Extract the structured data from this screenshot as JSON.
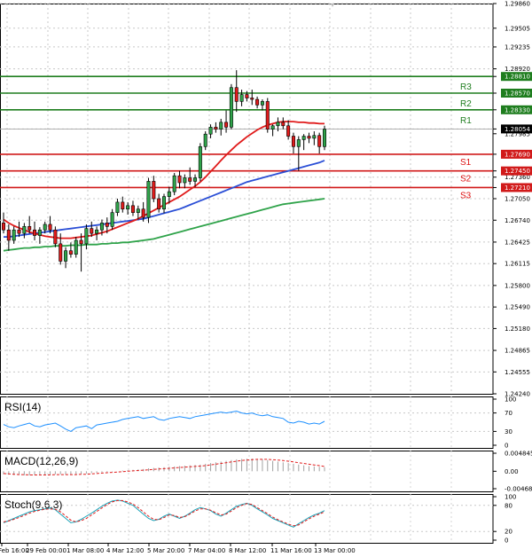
{
  "chart_data": {
    "type": "candlestick",
    "ylim": [
      1.2424,
      1.2986
    ],
    "y_ticks": [
      "1.29860",
      "1.29505",
      "1.29235",
      "1.28920",
      "1.28810",
      "1.28570",
      "1.28330",
      "1.28054",
      "1.27985",
      "1.27690",
      "1.27450",
      "1.27360",
      "1.27210",
      "1.27050",
      "1.26740",
      "1.26425",
      "1.26115",
      "1.25800",
      "1.25490",
      "1.25180",
      "1.24865",
      "1.24555",
      "1.24240"
    ],
    "x_ticks": [
      "Feb 16:00",
      "29 Feb 00:00",
      "1 Mar 08:00",
      "4 Mar 12:00",
      "5 Mar 20:00",
      "7 Mar 04:00",
      "8 Mar 12:00",
      "11 Mar 16:00",
      "13 Mar 00:00"
    ],
    "current_price": "1.28054",
    "levels": [
      {
        "name": "R3",
        "value": "1.28810",
        "color": "#1e7d1e"
      },
      {
        "name": "R2",
        "value": "1.28570",
        "color": "#1e7d1e"
      },
      {
        "name": "R1",
        "value": "1.28330",
        "color": "#1e7d1e"
      },
      {
        "name": "S1",
        "value": "1.27690",
        "color": "#d11a1a"
      },
      {
        "name": "S2",
        "value": "1.27450",
        "color": "#d11a1a"
      },
      {
        "name": "S3",
        "value": "1.27210",
        "color": "#d11a1a"
      }
    ],
    "candles": [
      [
        1.267,
        1.2685,
        1.2655,
        1.266
      ],
      [
        1.266,
        1.2668,
        1.263,
        1.2645
      ],
      [
        1.2645,
        1.2665,
        1.264,
        1.266
      ],
      [
        1.266,
        1.2672,
        1.265,
        1.2655
      ],
      [
        1.2655,
        1.267,
        1.2648,
        1.2665
      ],
      [
        1.2665,
        1.268,
        1.2655,
        1.266
      ],
      [
        1.266,
        1.2672,
        1.2645,
        1.2652
      ],
      [
        1.2652,
        1.2664,
        1.264,
        1.266
      ],
      [
        1.266,
        1.2672,
        1.2655,
        1.2668
      ],
      [
        1.2668,
        1.268,
        1.2655,
        1.266
      ],
      [
        1.266,
        1.2665,
        1.2635,
        1.264
      ],
      [
        1.264,
        1.2655,
        1.261,
        1.2615
      ],
      [
        1.2615,
        1.2635,
        1.2605,
        1.263
      ],
      [
        1.263,
        1.2642,
        1.262,
        1.2625
      ],
      [
        1.2625,
        1.265,
        1.262,
        1.2645
      ],
      [
        1.2645,
        1.2655,
        1.26,
        1.264
      ],
      [
        1.264,
        1.2668,
        1.2632,
        1.2662
      ],
      [
        1.2662,
        1.2672,
        1.265,
        1.2655
      ],
      [
        1.2655,
        1.2665,
        1.2645,
        1.266
      ],
      [
        1.266,
        1.2675,
        1.2652,
        1.267
      ],
      [
        1.267,
        1.2678,
        1.2655,
        1.2665
      ],
      [
        1.2665,
        1.269,
        1.266,
        1.2685
      ],
      [
        1.2685,
        1.2705,
        1.268,
        1.27
      ],
      [
        1.27,
        1.2708,
        1.2685,
        1.269
      ],
      [
        1.269,
        1.27,
        1.2682,
        1.2695
      ],
      [
        1.2695,
        1.2702,
        1.268,
        1.2685
      ],
      [
        1.2685,
        1.2695,
        1.2675,
        1.269
      ],
      [
        1.269,
        1.27,
        1.2672,
        1.2678
      ],
      [
        1.2678,
        1.2735,
        1.267,
        1.273
      ],
      [
        1.273,
        1.2738,
        1.27,
        1.2705
      ],
      [
        1.2705,
        1.2712,
        1.2685,
        1.269
      ],
      [
        1.269,
        1.2712,
        1.2684,
        1.2708
      ],
      [
        1.2708,
        1.2722,
        1.2698,
        1.2715
      ],
      [
        1.2715,
        1.2742,
        1.271,
        1.2738
      ],
      [
        1.2738,
        1.2745,
        1.272,
        1.2728
      ],
      [
        1.2728,
        1.274,
        1.272,
        1.2735
      ],
      [
        1.2735,
        1.275,
        1.2725,
        1.273
      ],
      [
        1.273,
        1.274,
        1.2722,
        1.2735
      ],
      [
        1.2735,
        1.2785,
        1.273,
        1.278
      ],
      [
        1.278,
        1.2802,
        1.2775,
        1.2798
      ],
      [
        1.2798,
        1.2812,
        1.2792,
        1.2808
      ],
      [
        1.2808,
        1.2815,
        1.28,
        1.2805
      ],
      [
        1.2805,
        1.282,
        1.2796,
        1.2815
      ],
      [
        1.2815,
        1.2832,
        1.28,
        1.2808
      ],
      [
        1.2808,
        1.287,
        1.2805,
        1.2865
      ],
      [
        1.2865,
        1.289,
        1.283,
        1.2845
      ],
      [
        1.2845,
        1.2862,
        1.2838,
        1.2855
      ],
      [
        1.2855,
        1.286,
        1.2845,
        1.285
      ],
      [
        1.285,
        1.2862,
        1.284,
        1.2848
      ],
      [
        1.2848,
        1.2852,
        1.2835,
        1.284
      ],
      [
        1.284,
        1.2848,
        1.2832,
        1.2845
      ],
      [
        1.2845,
        1.285,
        1.28,
        1.2805
      ],
      [
        1.2805,
        1.2812,
        1.2795,
        1.281
      ],
      [
        1.281,
        1.2822,
        1.2802,
        1.2815
      ],
      [
        1.2815,
        1.2822,
        1.2805,
        1.281
      ],
      [
        1.281,
        1.2818,
        1.279,
        1.2795
      ],
      [
        1.2795,
        1.28,
        1.277,
        1.278
      ],
      [
        1.278,
        1.2795,
        1.2745,
        1.279
      ],
      [
        1.279,
        1.2798,
        1.2775,
        1.2795
      ],
      [
        1.2795,
        1.28,
        1.2785,
        1.2792
      ],
      [
        1.2792,
        1.2802,
        1.2782,
        1.2796
      ],
      [
        1.2796,
        1.28,
        1.277,
        1.278
      ],
      [
        1.278,
        1.281,
        1.2775,
        1.2805
      ]
    ],
    "ma_red": [
      1.2675,
      1.267,
      1.2666,
      1.2663,
      1.266,
      1.2657,
      1.2655,
      1.2653,
      1.2651,
      1.265,
      1.2649,
      1.2648,
      1.2648,
      1.2648,
      1.2649,
      1.265,
      1.2651,
      1.2652,
      1.2654,
      1.2656,
      1.2658,
      1.2661,
      1.2664,
      1.2667,
      1.267,
      1.2673,
      1.2676,
      1.268,
      1.2684,
      1.2688,
      1.2692,
      1.2696,
      1.27,
      1.2704,
      1.2708,
      1.2713,
      1.2718,
      1.2723,
      1.2729,
      1.2736,
      1.2744,
      1.2752,
      1.276,
      1.2768,
      1.2775,
      1.2782,
      1.2788,
      1.2794,
      1.2799,
      1.2804,
      1.2808,
      1.2811,
      1.2813,
      1.2815,
      1.2816,
      1.2816,
      1.2816,
      1.2815,
      1.2815,
      1.2814,
      1.2814,
      1.2813,
      1.2813
    ],
    "ma_blue": [
      1.265,
      1.265,
      1.2651,
      1.2652,
      1.2653,
      1.2654,
      1.2655,
      1.2656,
      1.2657,
      1.2658,
      1.2659,
      1.266,
      1.2661,
      1.2662,
      1.2663,
      1.2664,
      1.2665,
      1.2666,
      1.2667,
      1.2668,
      1.2669,
      1.267,
      1.2671,
      1.2672,
      1.2673,
      1.2674,
      1.2675,
      1.2676,
      1.2678,
      1.268,
      1.2682,
      1.2684,
      1.2686,
      1.2688,
      1.269,
      1.2693,
      1.2696,
      1.2699,
      1.2702,
      1.2705,
      1.2708,
      1.2711,
      1.2714,
      1.2717,
      1.272,
      1.2723,
      1.2726,
      1.2729,
      1.2731,
      1.2733,
      1.2735,
      1.2737,
      1.2739,
      1.2741,
      1.2743,
      1.2745,
      1.2747,
      1.2749,
      1.2751,
      1.2753,
      1.2755,
      1.2757,
      1.276
    ],
    "ma_green": [
      1.263,
      1.2631,
      1.2632,
      1.2633,
      1.2634,
      1.2634,
      1.2635,
      1.2635,
      1.2636,
      1.2636,
      1.2637,
      1.2637,
      1.2637,
      1.2638,
      1.2638,
      1.2638,
      1.2639,
      1.2639,
      1.2639,
      1.264,
      1.264,
      1.2641,
      1.2641,
      1.2642,
      1.2642,
      1.2643,
      1.2644,
      1.2645,
      1.2646,
      1.2647,
      1.2649,
      1.2651,
      1.2653,
      1.2655,
      1.2657,
      1.2659,
      1.2661,
      1.2663,
      1.2665,
      1.2667,
      1.2669,
      1.2671,
      1.2673,
      1.2675,
      1.2677,
      1.2679,
      1.2681,
      1.2683,
      1.2685,
      1.2687,
      1.2689,
      1.2691,
      1.2693,
      1.2695,
      1.2697,
      1.2698,
      1.2699,
      1.27,
      1.2701,
      1.2702,
      1.2703,
      1.2704,
      1.2705
    ],
    "rsi": {
      "label": "RSI(14)",
      "ticks": [
        "100",
        "70",
        "30",
        "0"
      ],
      "values": [
        45,
        40,
        38,
        42,
        45,
        48,
        42,
        40,
        44,
        46,
        48,
        42,
        35,
        30,
        38,
        40,
        42,
        36,
        44,
        46,
        48,
        50,
        52,
        56,
        58,
        60,
        62,
        58,
        60,
        62,
        56,
        54,
        58,
        60,
        62,
        60,
        58,
        62,
        64,
        66,
        68,
        70,
        72,
        70,
        72,
        74,
        70,
        68,
        70,
        66,
        64,
        66,
        62,
        60,
        58,
        50,
        48,
        52,
        50,
        46,
        48,
        46,
        52
      ]
    },
    "macd": {
      "label": "MACD(12,26,9)",
      "ticks": [
        "0.004845",
        "0.00",
        "-0.004686"
      ],
      "hist": [
        -0.0008,
        -0.0009,
        -0.001,
        -0.001,
        -0.0011,
        -0.0011,
        -0.001,
        -0.001,
        -0.0009,
        -0.0009,
        -0.0008,
        -0.0008,
        -0.0009,
        -0.0009,
        -0.0008,
        -0.0007,
        -0.0006,
        -0.0005,
        -0.0004,
        -0.0003,
        -0.0002,
        -0.0001,
        0.0,
        0.0002,
        0.0003,
        0.0004,
        0.0005,
        0.0006,
        0.0008,
        0.0009,
        0.001,
        0.0011,
        0.0012,
        0.0013,
        0.0014,
        0.0015,
        0.0016,
        0.0017,
        0.0018,
        0.002,
        0.0022,
        0.0024,
        0.0026,
        0.0028,
        0.003,
        0.0032,
        0.0033,
        0.0034,
        0.0034,
        0.0033,
        0.0032,
        0.003,
        0.0028,
        0.0026,
        0.0024,
        0.0022,
        0.002,
        0.0018,
        0.0016,
        0.0014,
        0.0013,
        0.0012,
        0.0011
      ],
      "signal": [
        -0.0006,
        -0.0007,
        -0.0008,
        -0.0009,
        -0.0009,
        -0.001,
        -0.001,
        -0.001,
        -0.001,
        -0.001,
        -0.0009,
        -0.0009,
        -0.0009,
        -0.0009,
        -0.0009,
        -0.0008,
        -0.0008,
        -0.0007,
        -0.0006,
        -0.0005,
        -0.0004,
        -0.0003,
        -0.0002,
        -0.0001,
        0.0,
        0.0001,
        0.0002,
        0.0003,
        0.0004,
        0.0005,
        0.0006,
        0.0007,
        0.0008,
        0.0009,
        0.001,
        0.0011,
        0.0012,
        0.0013,
        0.0014,
        0.0015,
        0.0017,
        0.0019,
        0.0021,
        0.0023,
        0.0025,
        0.0027,
        0.0029,
        0.003,
        0.0031,
        0.0032,
        0.0032,
        0.0032,
        0.0031,
        0.003,
        0.0029,
        0.0027,
        0.0025,
        0.0023,
        0.0021,
        0.0019,
        0.0017,
        0.0015,
        0.0013
      ]
    },
    "stoch": {
      "label": "Stoch(9,6,3)",
      "ticks": [
        "100",
        "80",
        "20",
        "0"
      ],
      "k": [
        40,
        45,
        50,
        55,
        60,
        65,
        68,
        70,
        72,
        74,
        70,
        60,
        50,
        40,
        42,
        48,
        55,
        62,
        70,
        78,
        85,
        90,
        92,
        90,
        85,
        80,
        70,
        60,
        50,
        45,
        48,
        55,
        60,
        55,
        50,
        55,
        62,
        70,
        75,
        72,
        68,
        60,
        55,
        62,
        70,
        78,
        82,
        85,
        80,
        72,
        65,
        58,
        50,
        45,
        40,
        35,
        30,
        38,
        45,
        52,
        58,
        62,
        68
      ],
      "d": [
        42,
        44,
        48,
        52,
        57,
        62,
        66,
        69,
        71,
        72,
        71,
        65,
        56,
        46,
        42,
        45,
        50,
        58,
        66,
        74,
        82,
        88,
        91,
        91,
        88,
        83,
        75,
        65,
        55,
        48,
        47,
        52,
        58,
        57,
        52,
        54,
        60,
        67,
        72,
        72,
        69,
        63,
        58,
        60,
        67,
        75,
        80,
        84,
        82,
        75,
        68,
        61,
        53,
        47,
        42,
        37,
        33,
        35,
        42,
        49,
        55,
        60,
        65
      ]
    }
  }
}
